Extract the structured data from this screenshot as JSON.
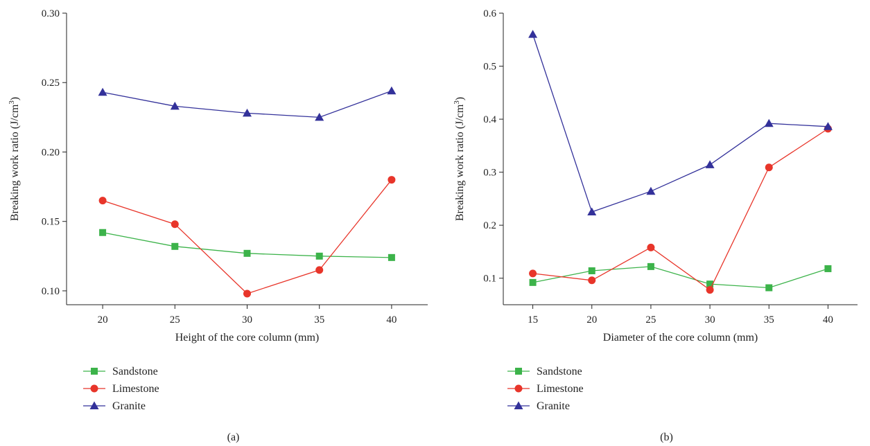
{
  "colors": {
    "Sandstone": "#3cb34a",
    "Limestone": "#e8352a",
    "Granite": "#33319a"
  },
  "chart_data": [
    {
      "type": "line",
      "panel_label": "(a)",
      "title": "",
      "xlabel": "Height of the core column (mm)",
      "ylabel": "Breaking work ratio (J/cm",
      "ylabel_sup": "3",
      "ylabel_end": ")",
      "x": [
        20,
        25,
        30,
        35,
        40
      ],
      "xlim": [
        17.5,
        42.5
      ],
      "ylim": [
        0.09,
        0.3
      ],
      "x_ticks": [
        "20",
        "25",
        "30",
        "35",
        "40"
      ],
      "y_ticks": [
        "0.10",
        "0.15",
        "0.20",
        "0.25",
        "0.30"
      ],
      "grid": false,
      "legend_position": "below",
      "series": [
        {
          "name": "Sandstone",
          "marker": "square",
          "values": [
            0.142,
            0.132,
            0.127,
            0.125,
            0.124
          ]
        },
        {
          "name": "Limestone",
          "marker": "circle",
          "values": [
            0.165,
            0.148,
            0.098,
            0.115,
            0.18
          ]
        },
        {
          "name": "Granite",
          "marker": "triangle",
          "values": [
            0.243,
            0.233,
            0.228,
            0.225,
            0.244
          ]
        }
      ]
    },
    {
      "type": "line",
      "panel_label": "(b)",
      "title": "",
      "xlabel": "Diameter of the core column (mm)",
      "ylabel": "Breaking work ratio (J/cm",
      "ylabel_sup": "3",
      "ylabel_end": ")",
      "x": [
        15,
        20,
        25,
        30,
        35,
        40
      ],
      "xlim": [
        12.5,
        42.5
      ],
      "ylim": [
        0.05,
        0.6
      ],
      "x_ticks": [
        "15",
        "20",
        "25",
        "30",
        "35",
        "40"
      ],
      "y_ticks": [
        "0.1",
        "0.2",
        "0.3",
        "0.4",
        "0.5",
        "0.6"
      ],
      "grid": false,
      "legend_position": "below",
      "series": [
        {
          "name": "Sandstone",
          "marker": "square",
          "values": [
            0.092,
            0.114,
            0.122,
            0.089,
            0.082,
            0.118
          ]
        },
        {
          "name": "Limestone",
          "marker": "circle",
          "values": [
            0.109,
            0.096,
            0.158,
            0.078,
            0.309,
            0.382
          ]
        },
        {
          "name": "Granite",
          "marker": "triangle",
          "values": [
            0.56,
            0.225,
            0.264,
            0.314,
            0.392,
            0.386
          ]
        }
      ]
    }
  ]
}
